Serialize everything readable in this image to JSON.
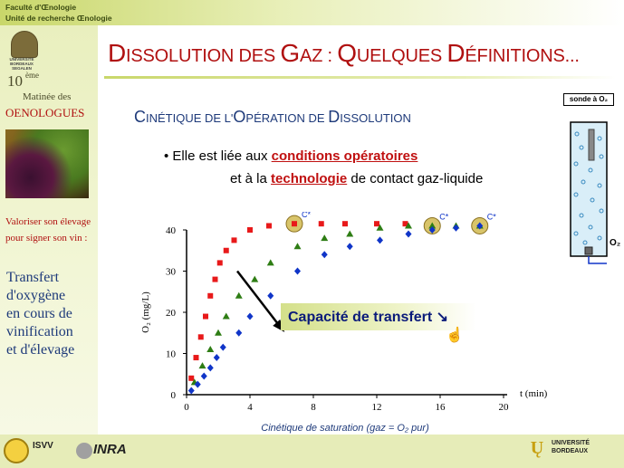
{
  "header": {
    "org_line1": "Faculté d'Œnologie",
    "org_line2": "Unité de recherche Œnologie"
  },
  "sidebar": {
    "univ_name": "UNIVERSITÉ BORDEAUX SEGALEN",
    "edition_number": "10",
    "edition_sup": "ème",
    "matinee": "Matinée des",
    "oenologues": "OENOLOGUES",
    "valoriser_line1": "Valoriser son élevage",
    "valoriser_line2": "pour signer son vin :",
    "transfert_lines": [
      "Transfert",
      "d'oxygène",
      "en cours de",
      "vinification",
      "et d'élevage"
    ]
  },
  "slide": {
    "title_parts": [
      "D",
      "ISSOLUTION DES ",
      "G",
      "AZ : ",
      "Q",
      "UELQUES ",
      "D",
      "ÉFINITIONS..."
    ],
    "subtitle_parts": [
      "C",
      "INÉTIQUE DE L'",
      "O",
      "PÉRATION DE ",
      "D",
      "ISSOLUTION"
    ],
    "bullet1_prefix": "• Elle est liée aux ",
    "bullet1_highlight": "conditions opératoires",
    "bullet2_prefix": "et à la ",
    "bullet2_highlight": "technologie",
    "bullet2_suffix": " de contact gaz-liquide",
    "capacity_label": "Capacité de transfert ↘"
  },
  "sonde_diagram": {
    "label": "sonde à O₂",
    "o2_label": "O₂"
  },
  "footer": {
    "isvv": "ISVV",
    "inra": "INRA",
    "univ_line1": "UNIVERSITÉ",
    "univ_line2": "BORDEAUX"
  },
  "colors": {
    "accent": "#b01010",
    "navy": "#1e3a7a",
    "olive": "#c9d76a"
  },
  "chart_data": {
    "type": "scatter",
    "xlabel": "t (min)",
    "ylabel": "O₂ (mg/L)",
    "caption": "Cinétique de saturation (gaz = O₂ pur)",
    "xlim": [
      0,
      20
    ],
    "ylim": [
      0,
      40
    ],
    "x_ticks": [
      0,
      4,
      8,
      12,
      16,
      20
    ],
    "y_ticks": [
      0,
      10,
      20,
      30,
      40
    ],
    "annotation_label": "C*",
    "series": [
      {
        "marker": "square",
        "color": "#e8191a",
        "x": [
          0.3,
          0.6,
          0.9,
          1.2,
          1.5,
          1.8,
          2.1,
          2.5,
          3,
          4,
          5.2,
          6.8,
          8.5,
          10,
          12,
          13.8
        ],
        "y": [
          4,
          9,
          14,
          19,
          24,
          28,
          32,
          35,
          37.5,
          40,
          41,
          41.5,
          41.5,
          41.5,
          41.5,
          41.5
        ]
      },
      {
        "marker": "triangle",
        "color": "#2e7d14",
        "x": [
          0.5,
          1,
          1.5,
          2,
          2.5,
          3.3,
          4.3,
          5.3,
          7,
          8.7,
          10.3,
          12.2,
          14,
          15.5,
          17,
          18.5
        ],
        "y": [
          3,
          7,
          11,
          15,
          19,
          24,
          28,
          32,
          36,
          38,
          39,
          40.5,
          41,
          41,
          41,
          41
        ]
      },
      {
        "marker": "diamond",
        "color": "#1035c8",
        "x": [
          0.3,
          0.7,
          1.1,
          1.5,
          1.9,
          2.3,
          3.3,
          4,
          5.3,
          7,
          8.7,
          10.3,
          12.2,
          14,
          15.5,
          17,
          18.5
        ],
        "y": [
          1,
          2.5,
          4.5,
          6.5,
          9,
          11.5,
          15,
          19,
          24,
          30,
          34,
          36,
          37.5,
          39,
          40,
          40.5,
          41
        ]
      }
    ]
  }
}
